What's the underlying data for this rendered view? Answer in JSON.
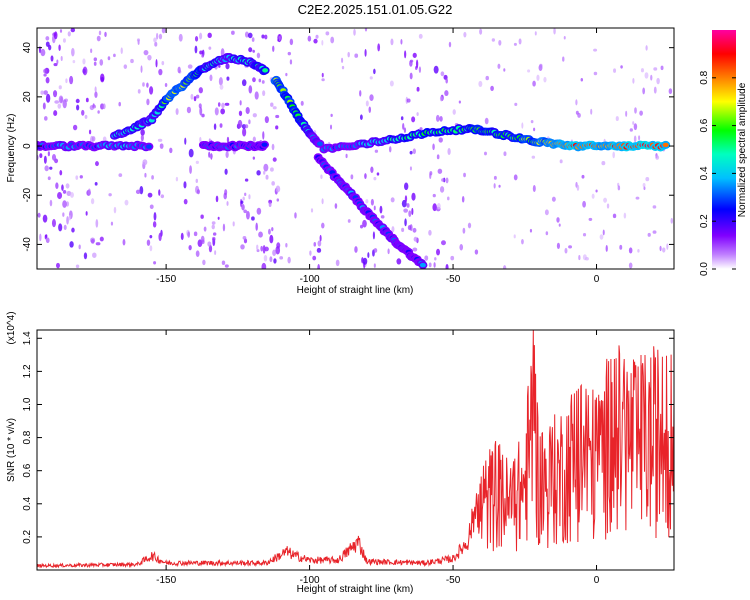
{
  "title": "C2E2.2025.151.01.05.G22",
  "chart_data": [
    {
      "type": "heatmap",
      "xlabel": "Height of straight line (km)",
      "ylabel": "Frequency (Hz)",
      "xlim": [
        -195,
        27
      ],
      "ylim": [
        -50,
        48
      ],
      "xticks": [
        -150,
        -100,
        -50,
        0
      ],
      "yticks": [
        -40,
        -20,
        0,
        20,
        40
      ],
      "colorbar": {
        "label": "Normalized spectral amplitude",
        "range": [
          0,
          1
        ],
        "ticks": [
          "0.0",
          "0.2",
          "0.4",
          "0.6",
          "0.8"
        ],
        "colors": [
          "#ffffff",
          "#8000ff",
          "#0000ff",
          "#00ffff",
          "#00ff00",
          "#ffff00",
          "#ff8000",
          "#ff0000",
          "#ff00ff"
        ]
      },
      "ridges": [
        {
          "x": [
            -195,
            -185,
            -175,
            -165,
            -155
          ],
          "y": [
            0,
            0,
            0,
            0,
            0
          ],
          "amp": [
            0.25,
            0.35,
            0.3,
            0.4,
            0.3
          ]
        },
        {
          "x": [
            -137,
            -130,
            -122,
            -115
          ],
          "y": [
            0,
            0,
            0,
            0
          ],
          "amp": [
            0.25,
            0.3,
            0.3,
            0.2
          ]
        },
        {
          "x": [
            -168,
            -160,
            -155,
            -150,
            -145,
            -140,
            -135,
            -128,
            -120,
            -115
          ],
          "y": [
            4,
            8,
            11,
            19,
            24,
            29,
            33,
            36,
            34,
            30
          ],
          "amp": [
            0.4,
            0.45,
            0.4,
            0.6,
            0.7,
            0.6,
            0.45,
            0.4,
            0.45,
            0.5
          ]
        },
        {
          "x": [
            -112,
            -108,
            -104,
            -100,
            -96
          ],
          "y": [
            27,
            20,
            12,
            5,
            0
          ],
          "amp": [
            0.65,
            0.6,
            0.55,
            0.4,
            0.35
          ]
        },
        {
          "x": [
            -97,
            -90,
            -85,
            -80,
            -75,
            -70,
            -65,
            -60
          ],
          "y": [
            -5,
            -14,
            -20,
            -27,
            -33,
            -39,
            -44,
            -49
          ],
          "amp": [
            0.25,
            0.3,
            0.35,
            0.3,
            0.3,
            0.3,
            0.25,
            0.35
          ]
        },
        {
          "x": [
            -95,
            -85,
            -75,
            -65,
            -55,
            -45,
            -38,
            -30,
            -22,
            -15,
            -8,
            0,
            8,
            16,
            25
          ],
          "y": [
            -1,
            0,
            2,
            4,
            6,
            7,
            6,
            4,
            2,
            1,
            0,
            0,
            0,
            0,
            0
          ],
          "amp": [
            0.3,
            0.35,
            0.45,
            0.5,
            0.55,
            0.55,
            0.55,
            0.55,
            0.65,
            0.75,
            0.85,
            0.8,
            0.85,
            0.9,
            0.85
          ]
        }
      ]
    },
    {
      "type": "line",
      "xlabel": "Height of straight line (km)",
      "ylabel": "SNR (10 * v/v)",
      "y_multiplier": "(x10^4)",
      "xlim": [
        -195,
        27
      ],
      "ylim": [
        0,
        1.45
      ],
      "xticks": [
        -150,
        -100,
        -50,
        0
      ],
      "yticks": [
        0.2,
        0.4,
        0.6,
        0.8,
        1.0,
        1.2,
        1.4
      ],
      "color": "#e8242a",
      "envelope": {
        "x": [
          -195,
          -160,
          -155,
          -150,
          -115,
          -108,
          -105,
          -100,
          -90,
          -83,
          -80,
          -60,
          -50,
          -45,
          -40,
          -35,
          -30,
          -25,
          -22,
          -20,
          -15,
          -10,
          -5,
          0,
          5,
          10,
          15,
          20,
          27
        ],
        "y": [
          0.03,
          0.04,
          0.1,
          0.05,
          0.05,
          0.13,
          0.1,
          0.07,
          0.07,
          0.2,
          0.06,
          0.05,
          0.08,
          0.2,
          0.6,
          0.75,
          0.6,
          0.8,
          1.45,
          0.8,
          0.85,
          1.0,
          1.1,
          1.0,
          1.25,
          1.25,
          1.2,
          1.25,
          1.28
        ]
      }
    }
  ]
}
